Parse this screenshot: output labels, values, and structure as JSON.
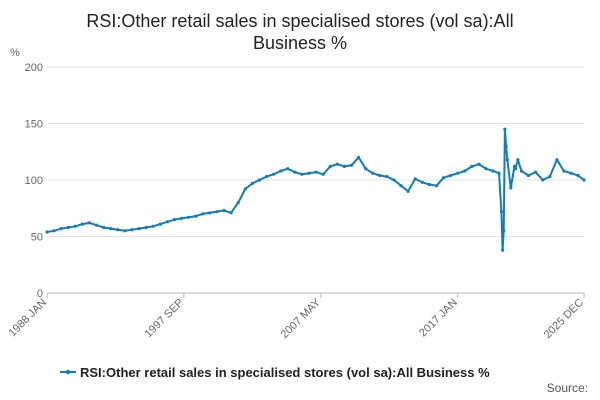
{
  "title_line1": "RSI:Other retail sales in specialised stores (vol sa):All",
  "title_line2": "Business %",
  "source_label": "Source:",
  "colors": {
    "series": "#0f7dc2",
    "grid": "#e3e3e3",
    "axis": "#bbbbbb",
    "text": "#666666"
  },
  "chart_data": {
    "type": "line",
    "title": "RSI:Other retail sales in specialised stores (vol sa):All Business %",
    "xlabel": "",
    "ylabel": "%",
    "ylim": [
      0,
      200
    ],
    "yticks": [
      0,
      50,
      100,
      150,
      200
    ],
    "xlim": [
      "1988 JAN",
      "2025 DEC"
    ],
    "xticks": [
      "1988 JAN",
      "1997 SEP",
      "2007 MAY",
      "2017 JAN",
      "2025 DEC"
    ],
    "grid": true,
    "legend": "bottom",
    "series": [
      {
        "name": "RSI:Other retail sales in specialised stores (vol sa):All Business %",
        "x": [
          "1988 JAN",
          "1988 JUL",
          "1989 JAN",
          "1989 JUL",
          "1990 JAN",
          "1990 JUL",
          "1991 JAN",
          "1991 JUL",
          "1992 JAN",
          "1992 JUL",
          "1993 JAN",
          "1993 JUL",
          "1994 JAN",
          "1994 JUL",
          "1995 JAN",
          "1995 JUL",
          "1996 JAN",
          "1996 JUL",
          "1997 JAN",
          "1997 JUL",
          "1998 JAN",
          "1998 JUL",
          "1999 JAN",
          "1999 JUL",
          "2000 JAN",
          "2000 JUL",
          "2001 JAN",
          "2001 JUL",
          "2002 JAN",
          "2002 JUL",
          "2003 JAN",
          "2003 JUL",
          "2004 JAN",
          "2004 JUL",
          "2005 JAN",
          "2005 JUL",
          "2006 JAN",
          "2006 JUL",
          "2007 JAN",
          "2007 JUL",
          "2008 JAN",
          "2008 JUL",
          "2009 JAN",
          "2009 JUL",
          "2010 JAN",
          "2010 JUL",
          "2011 JAN",
          "2011 JUL",
          "2012 JAN",
          "2012 JUL",
          "2013 JAN",
          "2013 JUL",
          "2014 JAN",
          "2014 JUL",
          "2015 JAN",
          "2015 JUL",
          "2016 JAN",
          "2016 JUL",
          "2017 JAN",
          "2017 JUL",
          "2018 JAN",
          "2018 JUL",
          "2019 JAN",
          "2019 JUL",
          "2019 DEC",
          "2020 FEB",
          "2020 MAR",
          "2020 APR",
          "2020 MAY",
          "2020 JUN",
          "2020 JUL",
          "2020 OCT",
          "2021 JAN",
          "2021 FEB",
          "2021 APR",
          "2021 JUL",
          "2022 JAN",
          "2022 JUL",
          "2023 JAN",
          "2023 JUL",
          "2024 JAN",
          "2024 JUL",
          "2025 JAN",
          "2025 JUL",
          "2025 DEC"
        ],
        "values": [
          54,
          55,
          57,
          58,
          59,
          61,
          62,
          60,
          58,
          57,
          56,
          55,
          56,
          57,
          58,
          59,
          61,
          63,
          65,
          66,
          67,
          68,
          70,
          71,
          72,
          73,
          71,
          80,
          92,
          97,
          100,
          103,
          105,
          108,
          110,
          107,
          105,
          106,
          107,
          105,
          112,
          114,
          112,
          113,
          120,
          110,
          106,
          104,
          103,
          100,
          95,
          90,
          101,
          98,
          96,
          95,
          102,
          104,
          106,
          108,
          112,
          114,
          110,
          108,
          106,
          72,
          38,
          55,
          145,
          130,
          118,
          93,
          112,
          110,
          118,
          108,
          104,
          107,
          100,
          103,
          118,
          108,
          106,
          104,
          100
        ]
      }
    ]
  }
}
